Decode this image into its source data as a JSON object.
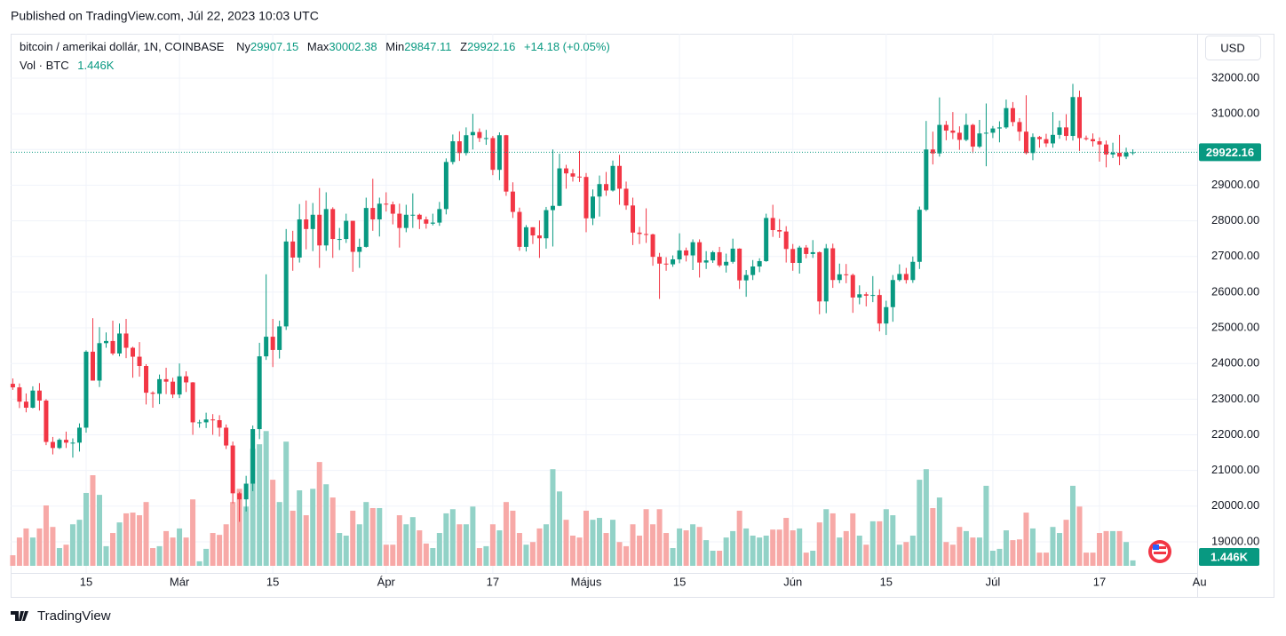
{
  "published": "Published on TradingView.com, Júl 22, 2023 10:03 UTC",
  "brand": "TradingView",
  "chart_data": {
    "type": "candlestick",
    "title": "bitcoin / amerikai dollár, 1N, COINBASE",
    "open_label": "Ny",
    "high_label": "Max",
    "low_label": "Min",
    "close_label": "Z",
    "change": "+14.18 (+0.05%)",
    "volume_title": "Vol · BTC",
    "volume_label": "1.446K",
    "currency": "USD",
    "up_color": "#089981",
    "down_color": "#f23645",
    "up_volume_color": "#92d2c7",
    "down_volume_color": "#f7a9a7",
    "grid": true,
    "xlim": [
      -0.32,
      177.65
    ],
    "xticks": [
      {
        "value": 11,
        "label": "15"
      },
      {
        "value": 25,
        "label": "Már"
      },
      {
        "value": 39,
        "label": "15"
      },
      {
        "value": 56,
        "label": "Ápr"
      },
      {
        "value": 72,
        "label": "17"
      },
      {
        "value": 86,
        "label": "Május"
      },
      {
        "value": 100,
        "label": "15"
      },
      {
        "value": 117,
        "label": "Jún"
      },
      {
        "value": 131,
        "label": "15"
      },
      {
        "value": 147,
        "label": "Júl"
      },
      {
        "value": 163,
        "label": "17"
      },
      {
        "value": 178,
        "label": "Au"
      }
    ],
    "ylim": [
      18127,
      33245
    ],
    "yticks": [
      {
        "value": 19000,
        "label": "19000.00"
      },
      {
        "value": 20000,
        "label": "20000.00"
      },
      {
        "value": 21000,
        "label": "21000.00"
      },
      {
        "value": 22000,
        "label": "22000.00"
      },
      {
        "value": 23000,
        "label": "23000.00"
      },
      {
        "value": 24000,
        "label": "24000.00"
      },
      {
        "value": 25000,
        "label": "25000.00"
      },
      {
        "value": 26000,
        "label": "26000.00"
      },
      {
        "value": 27000,
        "label": "27000.00"
      },
      {
        "value": 28000,
        "label": "28000.00"
      },
      {
        "value": 29000,
        "label": "29000.00"
      },
      {
        "value": 30000,
        "label": "30000.00"
      },
      {
        "value": 31000,
        "label": "31000.00"
      },
      {
        "value": 32000,
        "label": "32000.00"
      }
    ],
    "y2lim": [
      0,
      40000
    ],
    "candles": [
      [
        23430,
        23580,
        23260,
        23330,
        2800
      ],
      [
        23330,
        23440,
        22750,
        22930,
        7500
      ],
      [
        22930,
        23160,
        22630,
        22760,
        9900
      ],
      [
        22760,
        23360,
        22740,
        23240,
        7500
      ],
      [
        23240,
        23450,
        22680,
        22960,
        9900
      ],
      [
        22960,
        23000,
        21710,
        21800,
        16000
      ],
      [
        21800,
        21940,
        21450,
        21630,
        10300
      ],
      [
        21630,
        21900,
        21600,
        21860,
        4700
      ],
      [
        21860,
        22090,
        21630,
        21780,
        5600
      ],
      [
        21780,
        21900,
        21360,
        21780,
        11000
      ],
      [
        21780,
        22320,
        21530,
        22200,
        12200
      ],
      [
        22200,
        24370,
        22060,
        24330,
        19300
      ],
      [
        24330,
        25270,
        23520,
        23520,
        24000
      ],
      [
        23520,
        25020,
        23340,
        24570,
        18800
      ],
      [
        24570,
        24870,
        24440,
        24630,
        5200
      ],
      [
        24630,
        25200,
        24230,
        24280,
        8700
      ],
      [
        24280,
        25120,
        24200,
        24840,
        11500
      ],
      [
        24840,
        25250,
        24150,
        24440,
        13900
      ],
      [
        24440,
        24470,
        23600,
        24190,
        14100
      ],
      [
        24190,
        24600,
        23630,
        23930,
        13400
      ],
      [
        23930,
        23980,
        22850,
        23180,
        16900
      ],
      [
        23180,
        23220,
        22760,
        23150,
        4700
      ],
      [
        23150,
        23690,
        22860,
        23560,
        5200
      ],
      [
        23560,
        23880,
        23140,
        23490,
        9200
      ],
      [
        23490,
        23600,
        23030,
        23130,
        7500
      ],
      [
        23130,
        24000,
        23030,
        23640,
        9900
      ],
      [
        23640,
        23780,
        23200,
        23470,
        7500
      ],
      [
        23470,
        23480,
        22000,
        22350,
        17600
      ],
      [
        22350,
        22420,
        22200,
        22350,
        1200
      ],
      [
        22350,
        22620,
        22190,
        22430,
        4500
      ],
      [
        22430,
        22580,
        22000,
        22410,
        8700
      ],
      [
        22410,
        22550,
        21950,
        22200,
        8200
      ],
      [
        22200,
        22290,
        21600,
        21700,
        11000
      ],
      [
        21700,
        21810,
        20080,
        20360,
        16900
      ],
      [
        20360,
        20400,
        19560,
        20190,
        20400
      ],
      [
        20190,
        20850,
        19850,
        20630,
        15700
      ],
      [
        20630,
        22260,
        20420,
        22160,
        31000
      ],
      [
        22160,
        24580,
        21880,
        24200,
        32200
      ],
      [
        24200,
        26500,
        24100,
        24750,
        35700
      ],
      [
        24750,
        25250,
        23900,
        24380,
        22800
      ],
      [
        24380,
        25200,
        24140,
        25040,
        16900
      ],
      [
        25040,
        27770,
        24940,
        27420,
        32900
      ],
      [
        27420,
        27720,
        26600,
        26970,
        14600
      ],
      [
        26970,
        28470,
        26830,
        28040,
        20000
      ],
      [
        28040,
        28570,
        27200,
        27770,
        13400
      ],
      [
        27770,
        28500,
        27150,
        28170,
        20400
      ],
      [
        28170,
        28920,
        26680,
        27310,
        27500
      ],
      [
        27310,
        28800,
        27160,
        28330,
        21600
      ],
      [
        28330,
        28380,
        26960,
        27490,
        18100
      ],
      [
        27490,
        27800,
        27180,
        27490,
        8700
      ],
      [
        27490,
        28200,
        27380,
        28000,
        8000
      ],
      [
        28000,
        28000,
        26570,
        27130,
        14600
      ],
      [
        27130,
        27500,
        26680,
        27270,
        11000
      ],
      [
        27270,
        28650,
        27250,
        28360,
        16900
      ],
      [
        28360,
        29180,
        27720,
        28040,
        15300
      ],
      [
        28040,
        28650,
        27560,
        28480,
        15300
      ],
      [
        28480,
        28800,
        28260,
        28460,
        5600
      ],
      [
        28460,
        28540,
        27900,
        28200,
        5600
      ],
      [
        28200,
        28480,
        27250,
        27800,
        13400
      ],
      [
        27800,
        28450,
        27680,
        28170,
        11000
      ],
      [
        28170,
        28770,
        27800,
        28170,
        12900
      ],
      [
        28170,
        28200,
        27770,
        28040,
        9400
      ],
      [
        28040,
        28120,
        27780,
        27920,
        5900
      ],
      [
        27920,
        28200,
        27870,
        27950,
        4700
      ],
      [
        27950,
        28530,
        27860,
        28330,
        8700
      ],
      [
        28330,
        29750,
        28180,
        29650,
        13900
      ],
      [
        29650,
        30420,
        29580,
        30230,
        15000
      ],
      [
        30230,
        30510,
        29680,
        29900,
        11000
      ],
      [
        29900,
        30620,
        29830,
        30400,
        11000
      ],
      [
        30400,
        31000,
        30000,
        30490,
        15700
      ],
      [
        30490,
        30590,
        30210,
        30320,
        4700
      ],
      [
        30320,
        30550,
        30130,
        30320,
        5200
      ],
      [
        30320,
        30380,
        29280,
        29430,
        11000
      ],
      [
        29430,
        30480,
        29140,
        30400,
        9400
      ],
      [
        30400,
        30410,
        28700,
        28820,
        16900
      ],
      [
        28820,
        29080,
        28080,
        28250,
        14600
      ],
      [
        28250,
        28370,
        27160,
        27270,
        8700
      ],
      [
        27270,
        27880,
        27140,
        27820,
        5600
      ],
      [
        27820,
        27820,
        27350,
        27590,
        6300
      ],
      [
        27590,
        28010,
        26960,
        27510,
        9900
      ],
      [
        27510,
        28390,
        27220,
        28300,
        11000
      ],
      [
        28300,
        30000,
        27280,
        28420,
        25600
      ],
      [
        28420,
        29880,
        28410,
        29470,
        19700
      ],
      [
        29470,
        29570,
        28900,
        29330,
        12200
      ],
      [
        29330,
        29450,
        29100,
        29240,
        8000
      ],
      [
        29240,
        29960,
        29090,
        29230,
        7500
      ],
      [
        29230,
        29340,
        27680,
        28070,
        14600
      ],
      [
        28070,
        28880,
        27880,
        28680,
        12200
      ],
      [
        28680,
        29270,
        28120,
        29030,
        12700
      ],
      [
        29030,
        29370,
        28700,
        28850,
        8700
      ],
      [
        28850,
        29690,
        28820,
        29540,
        12200
      ],
      [
        29540,
        29850,
        28450,
        28900,
        6300
      ],
      [
        28900,
        29100,
        28310,
        28430,
        5200
      ],
      [
        28430,
        28650,
        27320,
        27670,
        11000
      ],
      [
        27670,
        27830,
        27350,
        27630,
        8000
      ],
      [
        27630,
        28350,
        27380,
        27620,
        15000
      ],
      [
        27620,
        27640,
        26740,
        26990,
        11000
      ],
      [
        26990,
        27100,
        25810,
        26800,
        15000
      ],
      [
        26800,
        26980,
        26600,
        26780,
        8700
      ],
      [
        26780,
        27030,
        26710,
        26920,
        4700
      ],
      [
        26920,
        27650,
        26810,
        27170,
        9900
      ],
      [
        27170,
        27250,
        26860,
        27030,
        9400
      ],
      [
        27030,
        27480,
        26620,
        27400,
        11000
      ],
      [
        27400,
        27480,
        26410,
        26830,
        10300
      ],
      [
        26830,
        27150,
        26650,
        26890,
        6800
      ],
      [
        26890,
        27160,
        26820,
        27120,
        4000
      ],
      [
        27120,
        27270,
        26700,
        26750,
        4000
      ],
      [
        26750,
        27080,
        26550,
        26850,
        7500
      ],
      [
        26850,
        27500,
        26800,
        27220,
        9200
      ],
      [
        27220,
        27230,
        26090,
        26330,
        14600
      ],
      [
        26330,
        26620,
        25870,
        26480,
        9900
      ],
      [
        26480,
        26900,
        26340,
        26720,
        8000
      ],
      [
        26720,
        26950,
        26560,
        26870,
        7500
      ],
      [
        26870,
        28200,
        26850,
        28080,
        8000
      ],
      [
        28080,
        28450,
        27550,
        27740,
        9600
      ],
      [
        27740,
        28050,
        27520,
        27700,
        9600
      ],
      [
        27700,
        27850,
        26830,
        27210,
        12700
      ],
      [
        27210,
        27350,
        26600,
        26820,
        9400
      ],
      [
        26820,
        27300,
        26520,
        27250,
        9900
      ],
      [
        27250,
        27320,
        26950,
        27070,
        3500
      ],
      [
        27070,
        27460,
        26960,
        27120,
        4000
      ],
      [
        27120,
        27140,
        25380,
        25740,
        11500
      ],
      [
        25740,
        27350,
        25410,
        27230,
        15000
      ],
      [
        27230,
        27360,
        26120,
        26340,
        13900
      ],
      [
        26340,
        26800,
        26250,
        26500,
        7500
      ],
      [
        26500,
        26790,
        26250,
        26480,
        9200
      ],
      [
        26480,
        26520,
        25420,
        25850,
        13900
      ],
      [
        25850,
        26190,
        25660,
        25940,
        8000
      ],
      [
        25940,
        26000,
        25600,
        25900,
        5600
      ],
      [
        25900,
        26450,
        25720,
        25920,
        11800
      ],
      [
        25920,
        26080,
        24900,
        25120,
        11800
      ],
      [
        25120,
        25760,
        24800,
        25580,
        15000
      ],
      [
        25580,
        26480,
        25170,
        26340,
        13400
      ],
      [
        26340,
        26780,
        26300,
        26510,
        5600
      ],
      [
        26510,
        26680,
        26240,
        26340,
        6300
      ],
      [
        26340,
        27000,
        26260,
        26850,
        8000
      ],
      [
        26850,
        28400,
        26650,
        28310,
        22800
      ],
      [
        28310,
        30800,
        28270,
        30000,
        25600
      ],
      [
        30000,
        30500,
        29580,
        29890,
        15300
      ],
      [
        29890,
        31460,
        29800,
        30690,
        18100
      ],
      [
        30690,
        30800,
        30260,
        30530,
        6300
      ],
      [
        30530,
        31050,
        30290,
        30470,
        5600
      ],
      [
        30470,
        30650,
        29990,
        30270,
        10300
      ],
      [
        30270,
        31010,
        30230,
        30690,
        9200
      ],
      [
        30690,
        30720,
        29900,
        30080,
        7500
      ],
      [
        30080,
        30830,
        30040,
        30450,
        7500
      ],
      [
        30450,
        31290,
        29530,
        30470,
        21200
      ],
      [
        30470,
        30660,
        30320,
        30590,
        4000
      ],
      [
        30590,
        30790,
        30200,
        30620,
        4500
      ],
      [
        30620,
        31400,
        30580,
        31160,
        9400
      ],
      [
        31160,
        31330,
        30650,
        30770,
        6800
      ],
      [
        30770,
        30880,
        30240,
        30500,
        7000
      ],
      [
        30500,
        31520,
        29860,
        29900,
        14100
      ],
      [
        29900,
        30450,
        29700,
        30350,
        9900
      ],
      [
        30350,
        30380,
        30050,
        30290,
        3500
      ],
      [
        30290,
        30440,
        30070,
        30170,
        3500
      ],
      [
        30170,
        31050,
        30050,
        30410,
        10300
      ],
      [
        30410,
        30810,
        30300,
        30620,
        8700
      ],
      [
        30620,
        30990,
        30250,
        30380,
        12200
      ],
      [
        30380,
        31840,
        30250,
        31470,
        21200
      ],
      [
        31470,
        31650,
        29960,
        30320,
        15700
      ],
      [
        30320,
        30390,
        30250,
        30290,
        3500
      ],
      [
        30290,
        30450,
        30080,
        30230,
        3500
      ],
      [
        30230,
        30340,
        29660,
        30140,
        8700
      ],
      [
        30140,
        30250,
        29500,
        29860,
        9200
      ],
      [
        29860,
        30190,
        29760,
        29910,
        9200
      ],
      [
        29910,
        30410,
        29560,
        29800,
        9200
      ],
      [
        29800,
        30050,
        29730,
        29910,
        6300
      ],
      [
        29907.15,
        30002.38,
        29847.11,
        29922.16,
        1446
      ]
    ]
  }
}
